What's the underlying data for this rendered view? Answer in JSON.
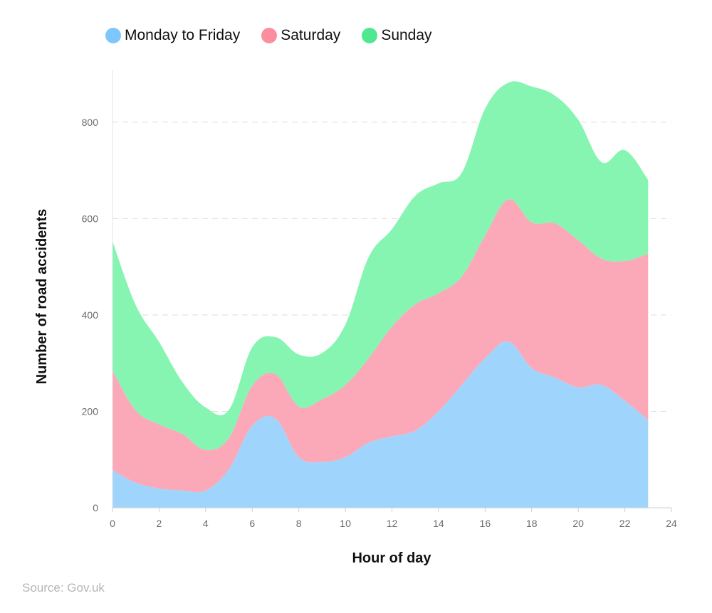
{
  "chart_data": {
    "type": "area",
    "stacked": true,
    "xlabel": "Hour of day",
    "ylabel": "Number of road accidents",
    "xlim": [
      0,
      24
    ],
    "ylim": [
      0,
      900
    ],
    "xticks": [
      0,
      2,
      4,
      6,
      8,
      10,
      12,
      14,
      16,
      18,
      20,
      22,
      24
    ],
    "yticks": [
      0,
      200,
      400,
      600,
      800
    ],
    "grid": "horizontal dashed",
    "legend_position": "top-left",
    "x": [
      0,
      1,
      2,
      3,
      4,
      5,
      6,
      7,
      8,
      9,
      10,
      11,
      12,
      13,
      14,
      15,
      16,
      17,
      18,
      19,
      20,
      21,
      22,
      23
    ],
    "series": [
      {
        "name": "Monday to Friday",
        "color": "#9fd5fc",
        "values": [
          78,
          52,
          40,
          36,
          36,
          80,
          170,
          185,
          105,
          95,
          105,
          135,
          148,
          160,
          200,
          255,
          310,
          345,
          290,
          270,
          250,
          255,
          222,
          182
        ]
      },
      {
        "name": "Saturday",
        "color": "#fba9b8",
        "values": [
          207,
          150,
          133,
          117,
          84,
          65,
          83,
          92,
          105,
          130,
          150,
          175,
          228,
          262,
          245,
          225,
          255,
          295,
          302,
          320,
          305,
          262,
          290,
          345
        ]
      },
      {
        "name": "Sunday",
        "color": "#85f5b1",
        "values": [
          268,
          218,
          171,
          108,
          88,
          58,
          80,
          77,
          108,
          96,
          125,
          210,
          202,
          225,
          228,
          215,
          263,
          242,
          282,
          265,
          250,
          200,
          230,
          153
        ]
      }
    ]
  },
  "source": "Source: Gov.uk"
}
